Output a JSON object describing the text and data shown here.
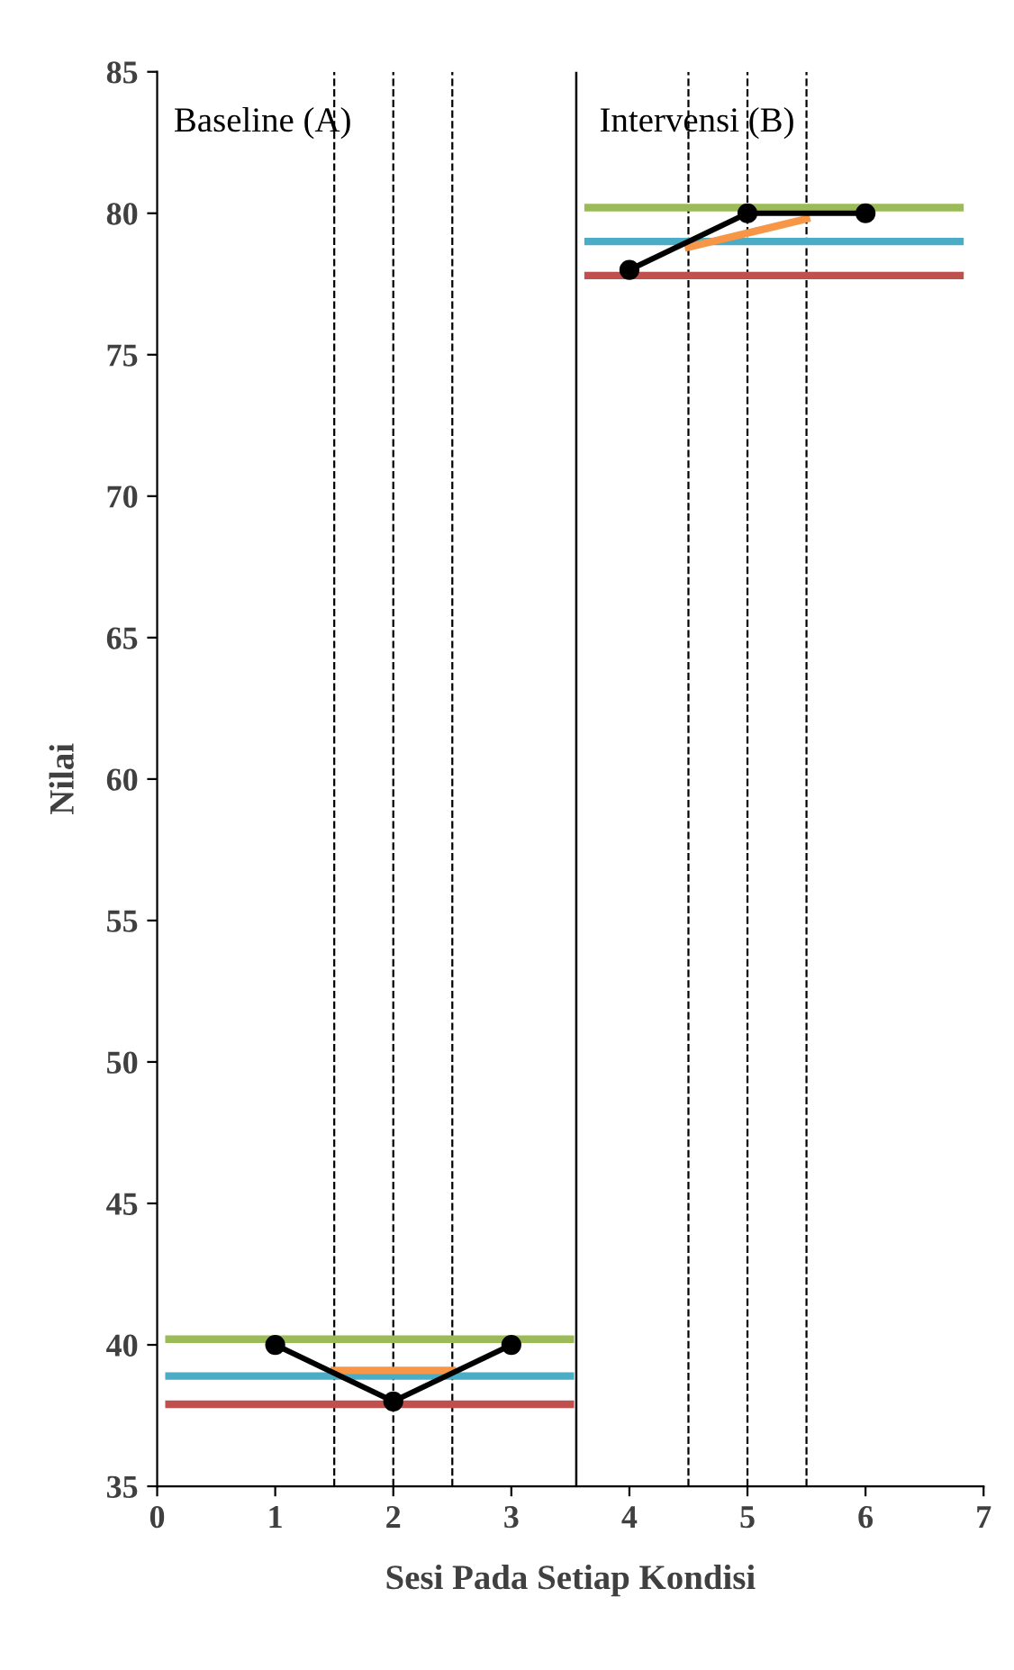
{
  "chart_data": {
    "type": "line",
    "xlabel": "Sesi Pada Setiap Kondisi",
    "ylabel": "Nilai",
    "xlim": [
      0,
      7
    ],
    "xticks": [
      0,
      1,
      2,
      3,
      4,
      5,
      6,
      7
    ],
    "ylim": [
      35,
      85
    ],
    "yticks": [
      35,
      40,
      45,
      50,
      55,
      60,
      65,
      70,
      75,
      80,
      85
    ],
    "grid": false,
    "legend": false,
    "marker": "circle",
    "line_style": "solid",
    "annotations": [
      "Baseline (A)",
      "Intervensi (B)"
    ],
    "series": [
      {
        "x": [
          1,
          2,
          3
        ],
        "values": [
          40,
          38,
          40
        ],
        "color": "#000000"
      },
      {
        "x": [
          4,
          5,
          6
        ],
        "values": [
          78,
          80,
          80
        ],
        "color": "#000000"
      },
      {
        "x": [
          0.1,
          3.5
        ],
        "values": [
          40.2,
          40.2
        ],
        "color": "#9bbb59",
        "marker": "none"
      },
      {
        "x": [
          0.1,
          3.5
        ],
        "values": [
          38.9,
          38.9
        ],
        "color": "#4bacc6",
        "marker": "none"
      },
      {
        "x": [
          0.1,
          3.5
        ],
        "values": [
          37.9,
          37.9
        ],
        "color": "#c0504d",
        "marker": "none"
      },
      {
        "x": [
          1.5,
          2.5
        ],
        "values": [
          39.1,
          39.1
        ],
        "color": "#f79646",
        "marker": "none"
      },
      {
        "x": [
          3.65,
          6.8
        ],
        "values": [
          80.2,
          80.2
        ],
        "color": "#9bbb59",
        "marker": "none"
      },
      {
        "x": [
          3.65,
          6.8
        ],
        "values": [
          79.0,
          79.0
        ],
        "color": "#4bacc6",
        "marker": "none"
      },
      {
        "x": [
          3.65,
          6.8
        ],
        "values": [
          77.8,
          77.8
        ],
        "color": "#c0504d",
        "marker": "none"
      },
      {
        "x": [
          4.5,
          5.5
        ],
        "values": [
          78.8,
          79.8
        ],
        "color": "#f79646",
        "marker": "none"
      }
    ],
    "ref_lines": [
      {
        "axis": "x",
        "value": 1.5,
        "line_style": "dashed",
        "color": "#000000"
      },
      {
        "axis": "x",
        "value": 2,
        "line_style": "dashed",
        "color": "#000000"
      },
      {
        "axis": "x",
        "value": 2.5,
        "line_style": "dashed",
        "color": "#000000"
      },
      {
        "axis": "x",
        "value": 3.55,
        "line_style": "solid",
        "color": "#000000"
      },
      {
        "axis": "x",
        "value": 4.5,
        "line_style": "dashed",
        "color": "#000000"
      },
      {
        "axis": "x",
        "value": 5,
        "line_style": "dashed",
        "color": "#000000"
      },
      {
        "axis": "x",
        "value": 5.5,
        "line_style": "dashed",
        "color": "#000000"
      }
    ]
  }
}
